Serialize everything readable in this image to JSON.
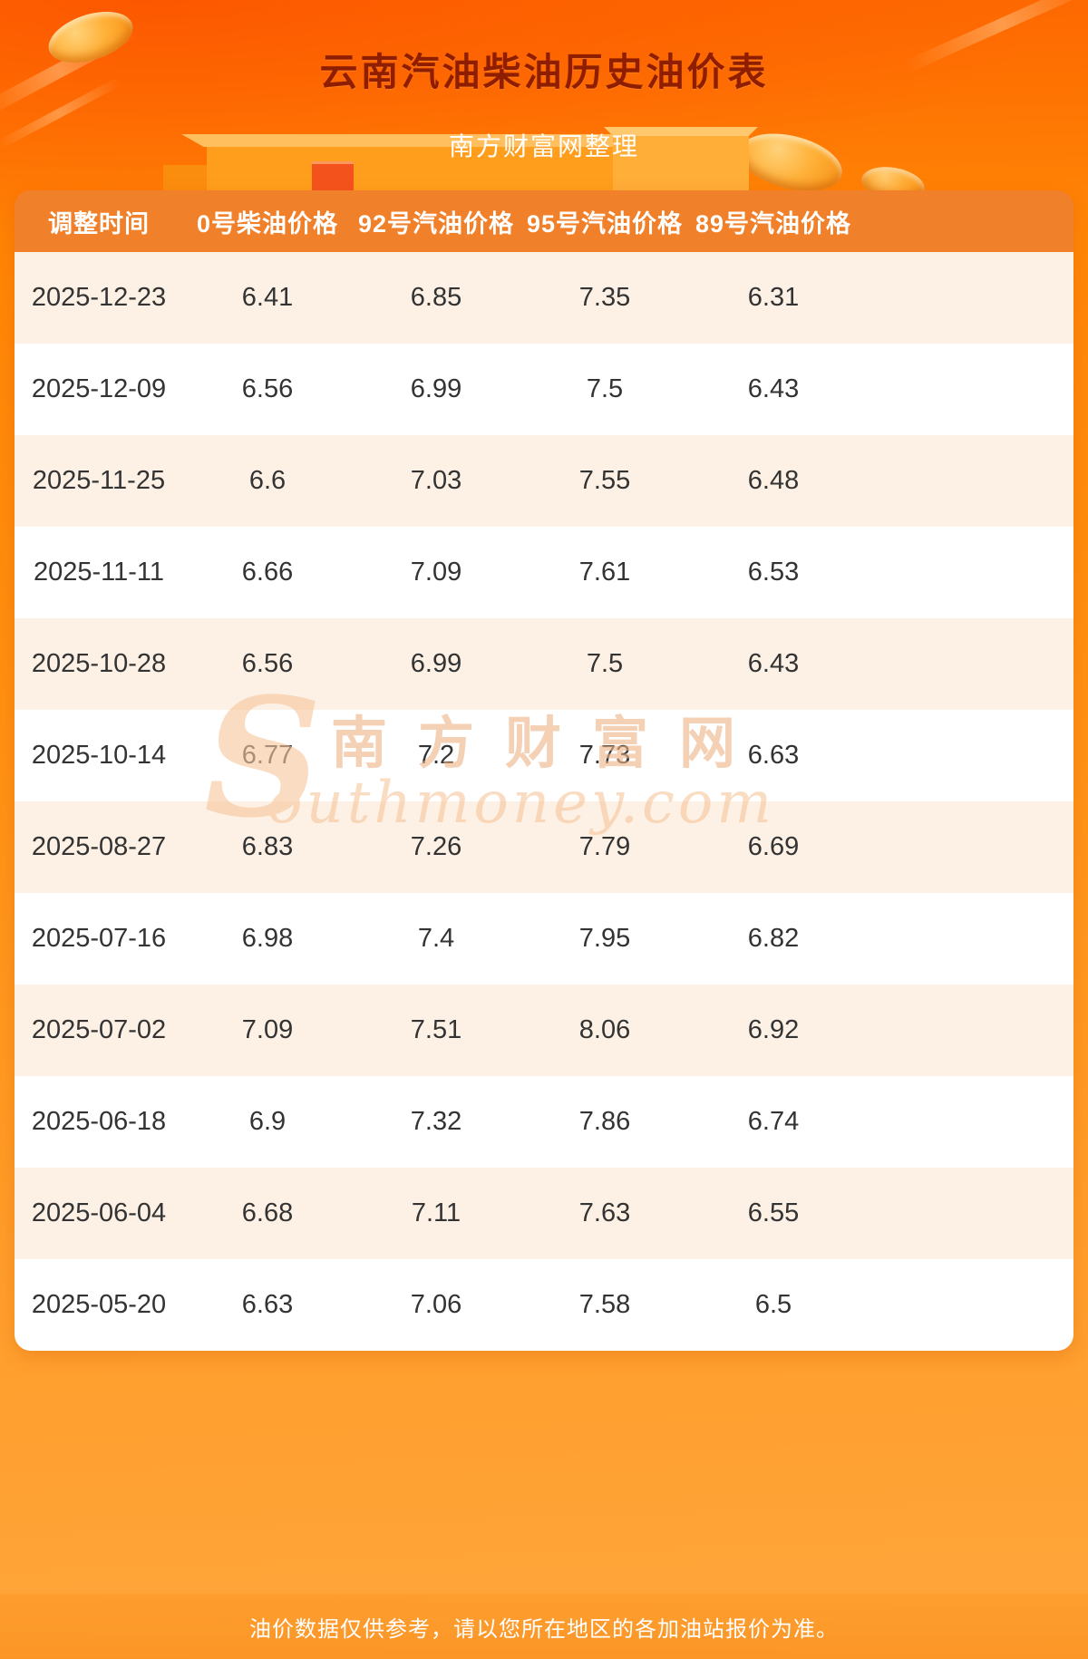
{
  "page": {
    "title": "云南汽油柴油历史油价表",
    "subtitle": "南方财富网整理",
    "footer": "油价数据仅供参考，请以您所在地区的各加油站报价为准。"
  },
  "watermark": {
    "initial": "S",
    "cn": "南方财富网",
    "en": "outhmoney.com"
  },
  "chart_data": {
    "type": "table",
    "title": "云南汽油柴油历史油价表",
    "columns": [
      "调整时间",
      "0号柴油价格",
      "92号汽油价格",
      "95号汽油价格",
      "89号汽油价格"
    ],
    "rows": [
      [
        "2025-12-23",
        "6.41",
        "6.85",
        "7.35",
        "6.31"
      ],
      [
        "2025-12-09",
        "6.56",
        "6.99",
        "7.5",
        "6.43"
      ],
      [
        "2025-11-25",
        "6.6",
        "7.03",
        "7.55",
        "6.48"
      ],
      [
        "2025-11-11",
        "6.66",
        "7.09",
        "7.61",
        "6.53"
      ],
      [
        "2025-10-28",
        "6.56",
        "6.99",
        "7.5",
        "6.43"
      ],
      [
        "2025-10-14",
        "6.77",
        "7.2",
        "7.73",
        "6.63"
      ],
      [
        "2025-08-27",
        "6.83",
        "7.26",
        "7.79",
        "6.69"
      ],
      [
        "2025-07-16",
        "6.98",
        "7.4",
        "7.95",
        "6.82"
      ],
      [
        "2025-07-02",
        "7.09",
        "7.51",
        "8.06",
        "6.92"
      ],
      [
        "2025-06-18",
        "6.9",
        "7.32",
        "7.86",
        "6.74"
      ],
      [
        "2025-06-04",
        "6.68",
        "7.11",
        "7.63",
        "6.55"
      ],
      [
        "2025-05-20",
        "6.63",
        "7.06",
        "7.58",
        "6.5"
      ]
    ]
  },
  "colors": {
    "title_color": "#8f1d00",
    "header_bg": "#f1802a",
    "row_alt_bg": "#fdf1e5",
    "accent_orange": "#ff8500"
  }
}
